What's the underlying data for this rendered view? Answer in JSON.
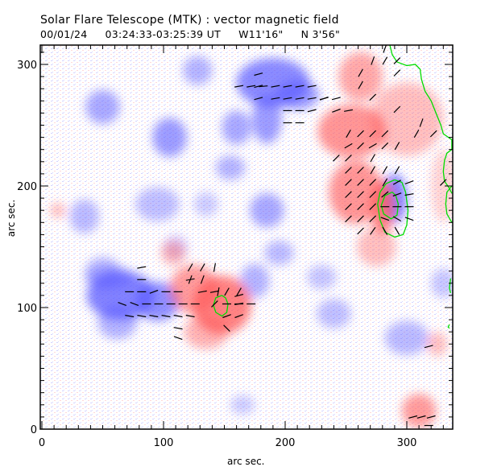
{
  "header": {
    "title": "Solar Flare Telescope (MTK) : vector magnetic field",
    "date": "00/01/24",
    "time_range": "03:24:33-03:25:39 UT",
    "position_w": "W11'16\"",
    "position_n": "N 3'56\""
  },
  "chart_data": {
    "type": "heatmap",
    "title": "Solar Flare Telescope (MTK) : vector magnetic field",
    "xlabel": "arc sec.",
    "ylabel": "arc sec.",
    "xlim": [
      0,
      337
    ],
    "ylim": [
      0,
      316
    ],
    "xticks": [
      0,
      100,
      200,
      300
    ],
    "yticks": [
      0,
      100,
      200,
      300
    ],
    "x_tick_labels": [
      "0",
      "100",
      "200",
      "300"
    ],
    "y_tick_labels": [
      "0",
      "100",
      "200",
      "300"
    ],
    "minor_tick_step": 10,
    "colors": {
      "positive": "#ff5a5a",
      "negative": "#5a5aff",
      "contour": "#00dd00",
      "vector": "#000000"
    },
    "blobs": [
      {
        "polarity": "negative",
        "x": 65,
        "y": 110,
        "rx": 28,
        "ry": 20,
        "s": 1.0
      },
      {
        "polarity": "negative",
        "x": 95,
        "y": 105,
        "rx": 18,
        "ry": 16,
        "s": 0.9
      },
      {
        "polarity": "negative",
        "x": 62,
        "y": 88,
        "rx": 16,
        "ry": 14,
        "s": 0.6
      },
      {
        "polarity": "negative",
        "x": 50,
        "y": 130,
        "rx": 14,
        "ry": 12,
        "s": 0.5
      },
      {
        "polarity": "negative",
        "x": 190,
        "y": 285,
        "rx": 30,
        "ry": 20,
        "s": 0.95
      },
      {
        "polarity": "negative",
        "x": 210,
        "y": 275,
        "rx": 18,
        "ry": 12,
        "s": 0.8
      },
      {
        "polarity": "negative",
        "x": 128,
        "y": 295,
        "rx": 12,
        "ry": 12,
        "s": 0.6
      },
      {
        "polarity": "negative",
        "x": 50,
        "y": 265,
        "rx": 14,
        "ry": 14,
        "s": 0.7
      },
      {
        "polarity": "negative",
        "x": 105,
        "y": 240,
        "rx": 14,
        "ry": 16,
        "s": 0.8
      },
      {
        "polarity": "negative",
        "x": 160,
        "y": 248,
        "rx": 12,
        "ry": 14,
        "s": 0.7
      },
      {
        "polarity": "negative",
        "x": 185,
        "y": 255,
        "rx": 12,
        "ry": 20,
        "s": 0.8
      },
      {
        "polarity": "negative",
        "x": 155,
        "y": 215,
        "rx": 12,
        "ry": 10,
        "s": 0.6
      },
      {
        "polarity": "negative",
        "x": 35,
        "y": 175,
        "rx": 12,
        "ry": 14,
        "s": 0.55
      },
      {
        "polarity": "negative",
        "x": 95,
        "y": 185,
        "rx": 18,
        "ry": 14,
        "s": 0.5
      },
      {
        "polarity": "negative",
        "x": 135,
        "y": 185,
        "rx": 10,
        "ry": 10,
        "s": 0.4
      },
      {
        "polarity": "negative",
        "x": 185,
        "y": 180,
        "rx": 14,
        "ry": 14,
        "s": 0.7
      },
      {
        "polarity": "negative",
        "x": 195,
        "y": 145,
        "rx": 12,
        "ry": 10,
        "s": 0.55
      },
      {
        "polarity": "negative",
        "x": 175,
        "y": 122,
        "rx": 12,
        "ry": 14,
        "s": 0.6
      },
      {
        "polarity": "negative",
        "x": 230,
        "y": 125,
        "rx": 12,
        "ry": 10,
        "s": 0.45
      },
      {
        "polarity": "negative",
        "x": 240,
        "y": 95,
        "rx": 14,
        "ry": 12,
        "s": 0.5
      },
      {
        "polarity": "negative",
        "x": 300,
        "y": 75,
        "rx": 18,
        "ry": 14,
        "s": 0.55
      },
      {
        "polarity": "negative",
        "x": 330,
        "y": 120,
        "rx": 10,
        "ry": 12,
        "s": 0.45
      },
      {
        "polarity": "negative",
        "x": 290,
        "y": 190,
        "rx": 10,
        "ry": 20,
        "s": 1.0
      },
      {
        "polarity": "negative",
        "x": 55,
        "y": 125,
        "rx": 20,
        "ry": 10,
        "s": 0.5
      },
      {
        "polarity": "negative",
        "x": 165,
        "y": 20,
        "rx": 10,
        "ry": 8,
        "s": 0.4
      },
      {
        "polarity": "negative",
        "x": 110,
        "y": 150,
        "rx": 10,
        "ry": 10,
        "s": 0.35
      },
      {
        "polarity": "positive",
        "x": 148,
        "y": 102,
        "rx": 24,
        "ry": 24,
        "s": 1.0
      },
      {
        "polarity": "positive",
        "x": 125,
        "y": 115,
        "rx": 20,
        "ry": 20,
        "s": 0.8
      },
      {
        "polarity": "positive",
        "x": 135,
        "y": 80,
        "rx": 18,
        "ry": 14,
        "s": 0.6
      },
      {
        "polarity": "positive",
        "x": 108,
        "y": 145,
        "rx": 10,
        "ry": 10,
        "s": 0.55
      },
      {
        "polarity": "positive",
        "x": 280,
        "y": 183,
        "rx": 10,
        "ry": 22,
        "s": 1.0
      },
      {
        "polarity": "positive",
        "x": 258,
        "y": 195,
        "rx": 22,
        "ry": 26,
        "s": 0.85
      },
      {
        "polarity": "positive",
        "x": 255,
        "y": 245,
        "rx": 28,
        "ry": 22,
        "s": 0.85
      },
      {
        "polarity": "positive",
        "x": 262,
        "y": 290,
        "rx": 18,
        "ry": 20,
        "s": 0.7
      },
      {
        "polarity": "positive",
        "x": 300,
        "y": 255,
        "rx": 30,
        "ry": 30,
        "s": 0.5
      },
      {
        "polarity": "positive",
        "x": 275,
        "y": 150,
        "rx": 16,
        "ry": 16,
        "s": 0.5
      },
      {
        "polarity": "positive",
        "x": 310,
        "y": 15,
        "rx": 14,
        "ry": 14,
        "s": 0.8
      },
      {
        "polarity": "positive",
        "x": 325,
        "y": 70,
        "rx": 8,
        "ry": 10,
        "s": 0.5
      },
      {
        "polarity": "positive",
        "x": 13,
        "y": 180,
        "rx": 6,
        "ry": 6,
        "s": 0.55
      },
      {
        "polarity": "positive",
        "x": 330,
        "y": 200,
        "rx": 10,
        "ry": 30,
        "s": 0.35
      }
    ],
    "vectors": [
      {
        "x": 178,
        "y": 292,
        "a": 15
      },
      {
        "x": 178,
        "y": 282,
        "a": 15
      },
      {
        "x": 178,
        "y": 272,
        "a": 15
      },
      {
        "x": 162,
        "y": 282,
        "a": 10
      },
      {
        "x": 172,
        "y": 282,
        "a": 10
      },
      {
        "x": 182,
        "y": 282,
        "a": 5
      },
      {
        "x": 192,
        "y": 282,
        "a": 10
      },
      {
        "x": 202,
        "y": 282,
        "a": 10
      },
      {
        "x": 212,
        "y": 282,
        "a": 10
      },
      {
        "x": 222,
        "y": 282,
        "a": 10
      },
      {
        "x": 232,
        "y": 272,
        "a": 20
      },
      {
        "x": 192,
        "y": 272,
        "a": 10
      },
      {
        "x": 202,
        "y": 272,
        "a": 10
      },
      {
        "x": 212,
        "y": 272,
        "a": 10
      },
      {
        "x": 222,
        "y": 272,
        "a": 10
      },
      {
        "x": 232,
        "y": 272,
        "a": 15
      },
      {
        "x": 242,
        "y": 272,
        "a": 15
      },
      {
        "x": 202,
        "y": 262,
        "a": 0
      },
      {
        "x": 212,
        "y": 262,
        "a": 0
      },
      {
        "x": 222,
        "y": 262,
        "a": 15
      },
      {
        "x": 242,
        "y": 262,
        "a": 20
      },
      {
        "x": 252,
        "y": 262,
        "a": 10
      },
      {
        "x": 202,
        "y": 252,
        "a": 0
      },
      {
        "x": 212,
        "y": 252,
        "a": 0
      },
      {
        "x": 272,
        "y": 303,
        "a": 70
      },
      {
        "x": 282,
        "y": 303,
        "a": 60
      },
      {
        "x": 282,
        "y": 313,
        "a": 70
      },
      {
        "x": 292,
        "y": 303,
        "a": 45
      },
      {
        "x": 292,
        "y": 293,
        "a": 45
      },
      {
        "x": 262,
        "y": 293,
        "a": 60
      },
      {
        "x": 262,
        "y": 283,
        "a": 60
      },
      {
        "x": 272,
        "y": 273,
        "a": 45
      },
      {
        "x": 292,
        "y": 263,
        "a": 45
      },
      {
        "x": 312,
        "y": 252,
        "a": 70
      },
      {
        "x": 252,
        "y": 243,
        "a": 60
      },
      {
        "x": 262,
        "y": 243,
        "a": 45
      },
      {
        "x": 272,
        "y": 243,
        "a": 45
      },
      {
        "x": 282,
        "y": 243,
        "a": 45
      },
      {
        "x": 252,
        "y": 233,
        "a": 30
      },
      {
        "x": 262,
        "y": 233,
        "a": 45
      },
      {
        "x": 272,
        "y": 233,
        "a": 30
      },
      {
        "x": 282,
        "y": 233,
        "a": 45
      },
      {
        "x": 292,
        "y": 233,
        "a": 60
      },
      {
        "x": 272,
        "y": 223,
        "a": 60
      },
      {
        "x": 242,
        "y": 223,
        "a": 45
      },
      {
        "x": 252,
        "y": 223,
        "a": 45
      },
      {
        "x": 308,
        "y": 243,
        "a": 60
      },
      {
        "x": 322,
        "y": 243,
        "a": 45
      },
      {
        "x": 330,
        "y": 203,
        "a": 45
      },
      {
        "x": 252,
        "y": 213,
        "a": 45
      },
      {
        "x": 262,
        "y": 213,
        "a": 45
      },
      {
        "x": 272,
        "y": 213,
        "a": 60
      },
      {
        "x": 282,
        "y": 213,
        "a": 60
      },
      {
        "x": 292,
        "y": 213,
        "a": 60
      },
      {
        "x": 252,
        "y": 203,
        "a": 225
      },
      {
        "x": 262,
        "y": 203,
        "a": 225
      },
      {
        "x": 272,
        "y": 203,
        "a": 225
      },
      {
        "x": 282,
        "y": 203,
        "a": 240
      },
      {
        "x": 292,
        "y": 203,
        "a": 210
      },
      {
        "x": 302,
        "y": 203,
        "a": 200
      },
      {
        "x": 252,
        "y": 193,
        "a": 225
      },
      {
        "x": 262,
        "y": 193,
        "a": 225
      },
      {
        "x": 272,
        "y": 193,
        "a": 225
      },
      {
        "x": 282,
        "y": 193,
        "a": 220
      },
      {
        "x": 292,
        "y": 193,
        "a": 200
      },
      {
        "x": 302,
        "y": 193,
        "a": 190
      },
      {
        "x": 252,
        "y": 183,
        "a": 225
      },
      {
        "x": 262,
        "y": 183,
        "a": 225
      },
      {
        "x": 272,
        "y": 183,
        "a": 225
      },
      {
        "x": 282,
        "y": 183,
        "a": 180
      },
      {
        "x": 292,
        "y": 183,
        "a": 180
      },
      {
        "x": 302,
        "y": 183,
        "a": 180
      },
      {
        "x": 252,
        "y": 173,
        "a": 225
      },
      {
        "x": 262,
        "y": 173,
        "a": 225
      },
      {
        "x": 272,
        "y": 173,
        "a": 225
      },
      {
        "x": 282,
        "y": 173,
        "a": 160
      },
      {
        "x": 292,
        "y": 173,
        "a": 150
      },
      {
        "x": 302,
        "y": 173,
        "a": 160
      },
      {
        "x": 262,
        "y": 163,
        "a": 225
      },
      {
        "x": 272,
        "y": 163,
        "a": 235
      },
      {
        "x": 282,
        "y": 163,
        "a": 120
      },
      {
        "x": 292,
        "y": 163,
        "a": 120
      },
      {
        "x": 162,
        "y": 110,
        "a": 15
      },
      {
        "x": 82,
        "y": 123,
        "a": 0
      },
      {
        "x": 72,
        "y": 113,
        "a": 0
      },
      {
        "x": 82,
        "y": 113,
        "a": 0
      },
      {
        "x": 92,
        "y": 113,
        "a": 20
      },
      {
        "x": 102,
        "y": 113,
        "a": 0
      },
      {
        "x": 112,
        "y": 113,
        "a": 0
      },
      {
        "x": 66,
        "y": 103,
        "a": -20
      },
      {
        "x": 76,
        "y": 103,
        "a": -20
      },
      {
        "x": 86,
        "y": 103,
        "a": 0
      },
      {
        "x": 96,
        "y": 103,
        "a": 0
      },
      {
        "x": 106,
        "y": 103,
        "a": 0
      },
      {
        "x": 116,
        "y": 103,
        "a": 0
      },
      {
        "x": 126,
        "y": 103,
        "a": 0
      },
      {
        "x": 72,
        "y": 93,
        "a": -10
      },
      {
        "x": 82,
        "y": 93,
        "a": -10
      },
      {
        "x": 92,
        "y": 93,
        "a": -10
      },
      {
        "x": 102,
        "y": 93,
        "a": -10
      },
      {
        "x": 112,
        "y": 93,
        "a": -10
      },
      {
        "x": 122,
        "y": 93,
        "a": -10
      },
      {
        "x": 112,
        "y": 83,
        "a": -10
      },
      {
        "x": 112,
        "y": 75,
        "a": -20
      },
      {
        "x": 82,
        "y": 133,
        "a": 10
      },
      {
        "x": 122,
        "y": 123,
        "a": 10
      },
      {
        "x": 132,
        "y": 113,
        "a": 10
      },
      {
        "x": 142,
        "y": 113,
        "a": 10
      },
      {
        "x": 142,
        "y": 133,
        "a": 80
      },
      {
        "x": 122,
        "y": 123,
        "a": 70
      },
      {
        "x": 132,
        "y": 123,
        "a": 70
      },
      {
        "x": 132,
        "y": 133,
        "a": 60
      },
      {
        "x": 122,
        "y": 133,
        "a": 60
      },
      {
        "x": 152,
        "y": 113,
        "a": 60
      },
      {
        "x": 162,
        "y": 113,
        "a": 60
      },
      {
        "x": 145,
        "y": 113,
        "a": 80
      },
      {
        "x": 152,
        "y": 103,
        "a": 0
      },
      {
        "x": 162,
        "y": 103,
        "a": 0
      },
      {
        "x": 172,
        "y": 103,
        "a": 0
      },
      {
        "x": 142,
        "y": 103,
        "a": 45
      },
      {
        "x": 152,
        "y": 93,
        "a": 20
      },
      {
        "x": 162,
        "y": 93,
        "a": 20
      },
      {
        "x": 152,
        "y": 83,
        "a": -45
      },
      {
        "x": 162,
        "y": 103,
        "a": 10
      },
      {
        "x": 305,
        "y": 10,
        "a": 15
      },
      {
        "x": 312,
        "y": 10,
        "a": 15
      },
      {
        "x": 320,
        "y": 10,
        "a": 15
      },
      {
        "x": 318,
        "y": 3,
        "a": 0
      },
      {
        "x": 318,
        "y": 68,
        "a": 15
      }
    ],
    "contours": [
      {
        "name": "main-neutral-line",
        "points": [
          [
            286,
            316
          ],
          [
            288,
            308
          ],
          [
            292,
            302
          ],
          [
            300,
            299
          ],
          [
            307,
            300
          ],
          [
            311,
            296
          ],
          [
            312,
            288
          ],
          [
            315,
            278
          ],
          [
            320,
            270
          ],
          [
            324,
            260
          ],
          [
            328,
            250
          ],
          [
            330,
            243
          ],
          [
            337,
            238
          ],
          [
            337,
            230
          ],
          [
            333,
            227
          ],
          [
            331,
            221
          ],
          [
            330,
            212
          ],
          [
            331,
            204
          ],
          [
            335,
            198
          ],
          [
            337,
            194
          ]
        ]
      },
      {
        "name": "right-edge-contour",
        "points": [
          [
            337,
            200
          ],
          [
            333,
            195
          ],
          [
            332,
            185
          ],
          [
            333,
            177
          ],
          [
            337,
            170
          ]
        ]
      },
      {
        "name": "outer-ring",
        "points": [
          [
            290,
            205
          ],
          [
            283,
            202
          ],
          [
            278,
            195
          ],
          [
            276,
            185
          ],
          [
            278,
            172
          ],
          [
            282,
            162
          ],
          [
            290,
            158
          ],
          [
            297,
            160
          ],
          [
            300,
            168
          ],
          [
            301,
            180
          ],
          [
            299,
            195
          ],
          [
            296,
            203
          ],
          [
            290,
            205
          ]
        ]
      },
      {
        "name": "inner-ring",
        "points": [
          [
            288,
            195
          ],
          [
            282,
            192
          ],
          [
            279,
            184
          ],
          [
            281,
            177
          ],
          [
            287,
            173
          ],
          [
            292,
            176
          ],
          [
            293,
            185
          ],
          [
            291,
            192
          ],
          [
            288,
            195
          ]
        ]
      },
      {
        "name": "spot-ring",
        "points": [
          [
            148,
            110
          ],
          [
            143,
            108
          ],
          [
            141,
            102
          ],
          [
            143,
            96
          ],
          [
            148,
            93
          ],
          [
            152,
            96
          ],
          [
            153,
            103
          ],
          [
            151,
            108
          ],
          [
            148,
            110
          ]
        ]
      },
      {
        "name": "edge-mark-1",
        "points": [
          [
            336,
            124
          ],
          [
            335,
            116
          ],
          [
            336,
            112
          ]
        ]
      },
      {
        "name": "edge-mark-2",
        "points": [
          [
            335,
            86
          ],
          [
            334,
            84
          ],
          [
            335,
            83
          ]
        ]
      }
    ]
  }
}
